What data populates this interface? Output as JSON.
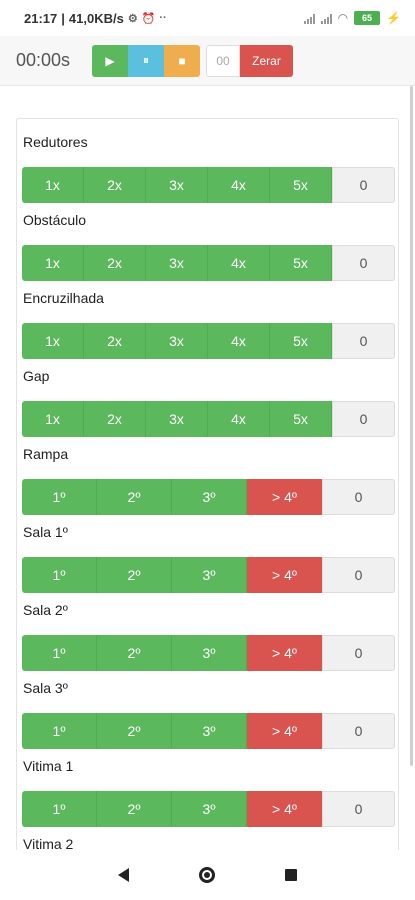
{
  "status_bar": {
    "time": "21:17",
    "speed": "41,0KB/s",
    "battery": "65",
    "icons": [
      "location-icon",
      "alarm-icon",
      "more-icon",
      "signal-icon",
      "wifi-icon",
      "battery-icon",
      "charging-icon"
    ]
  },
  "toolbar": {
    "timer": "00:00s",
    "play_icon": "▶",
    "pause_icon": "⏸",
    "stop_icon": "■",
    "counter": "00",
    "reset_label": "Zerar"
  },
  "sections": [
    {
      "title": "Redutores",
      "buttons": [
        "1x",
        "2x",
        "3x",
        "4x",
        "5x"
      ],
      "zero": "0"
    },
    {
      "title": "Obstáculo",
      "buttons": [
        "1x",
        "2x",
        "3x",
        "4x",
        "5x"
      ],
      "zero": "0"
    },
    {
      "title": "Encruzilhada",
      "buttons": [
        "1x",
        "2x",
        "3x",
        "4x",
        "5x"
      ],
      "zero": "0"
    },
    {
      "title": "Gap",
      "buttons": [
        "1x",
        "2x",
        "3x",
        "4x",
        "5x"
      ],
      "zero": "0"
    },
    {
      "title": "Rampa",
      "buttons": [
        "1º",
        "2º",
        "3º",
        "> 4º"
      ],
      "zero": "0"
    },
    {
      "title": "Sala 1º",
      "buttons": [
        "1º",
        "2º",
        "3º",
        "> 4º"
      ],
      "zero": "0"
    },
    {
      "title": "Sala 2º",
      "buttons": [
        "1º",
        "2º",
        "3º",
        "> 4º"
      ],
      "zero": "0"
    },
    {
      "title": "Sala 3º",
      "buttons": [
        "1º",
        "2º",
        "3º",
        "> 4º"
      ],
      "zero": "0"
    },
    {
      "title": "Vitima 1",
      "buttons": [
        "1º",
        "2º",
        "3º",
        "> 4º"
      ],
      "zero": "0"
    },
    {
      "title": "Vitima 2",
      "buttons": [],
      "zero": ""
    }
  ],
  "colors": {
    "green": "#5cb85c",
    "blue": "#5bc0de",
    "orange": "#f0ad4e",
    "red": "#d9534f",
    "neutral": "#f0f0f0"
  },
  "nav_bar": {
    "icons": [
      "back-icon",
      "home-icon",
      "recents-icon"
    ]
  }
}
